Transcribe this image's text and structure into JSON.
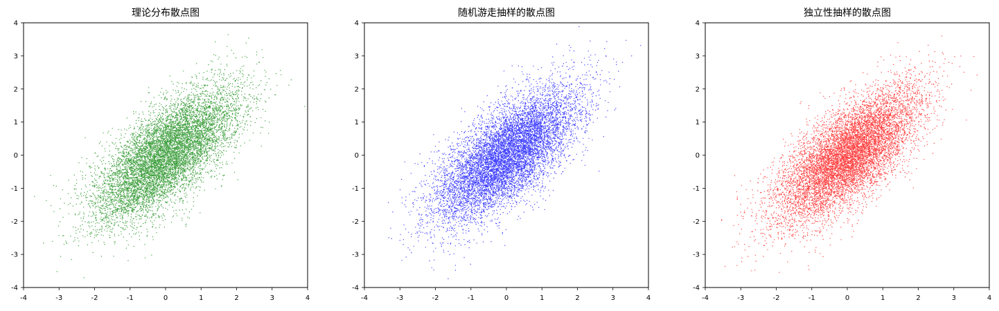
{
  "chart_data": [
    {
      "type": "scatter",
      "title": "理论分布散点图",
      "xlabel": "",
      "ylabel": "",
      "xlim": [
        -4,
        4
      ],
      "ylim": [
        -4,
        4
      ],
      "xticks": [
        "-4",
        "-3",
        "-2",
        "-1",
        "0",
        "1",
        "2",
        "3",
        "4"
      ],
      "yticks": [
        "-4",
        "-3",
        "-2",
        "-1",
        "0",
        "1",
        "2",
        "3",
        "4"
      ],
      "grid": false,
      "color": "#008000",
      "distribution": {
        "mean": [
          0,
          0
        ],
        "std": [
          1,
          1
        ],
        "correlation": 0.7
      },
      "approx_point_count": 50000
    },
    {
      "type": "scatter",
      "title": "随机游走抽样的散点图",
      "xlabel": "",
      "ylabel": "",
      "xlim": [
        -4,
        4
      ],
      "ylim": [
        -4,
        4
      ],
      "xticks": [
        "-4",
        "-3",
        "-2",
        "-1",
        "0",
        "1",
        "2",
        "3",
        "4"
      ],
      "yticks": [
        "-4",
        "-3",
        "-2",
        "-1",
        "0",
        "1",
        "2",
        "3",
        "4"
      ],
      "grid": false,
      "color": "#0000ff",
      "distribution": {
        "mean": [
          0,
          0
        ],
        "std": [
          1,
          1
        ],
        "correlation": 0.7
      },
      "approx_point_count": 50000
    },
    {
      "type": "scatter",
      "title": "独立性抽样的散点图",
      "xlabel": "",
      "ylabel": "",
      "xlim": [
        -4,
        4
      ],
      "ylim": [
        -4,
        4
      ],
      "xticks": [
        "-4",
        "-3",
        "-2",
        "-1",
        "0",
        "1",
        "2",
        "3",
        "4"
      ],
      "yticks": [
        "-4",
        "-3",
        "-2",
        "-1",
        "0",
        "1",
        "2",
        "3",
        "4"
      ],
      "grid": false,
      "color": "#ff0000",
      "distribution": {
        "mean": [
          0,
          0
        ],
        "std": [
          1,
          1
        ],
        "correlation": 0.7
      },
      "approx_point_count": 50000
    }
  ]
}
